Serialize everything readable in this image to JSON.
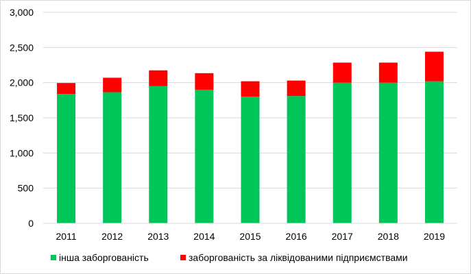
{
  "chart_data": {
    "type": "bar",
    "stacked": true,
    "categories": [
      "2011",
      "2012",
      "2013",
      "2014",
      "2015",
      "2016",
      "2017",
      "2018",
      "2019"
    ],
    "series": [
      {
        "name": "інша заборгованість",
        "color": "#00C65A",
        "values": [
          1840,
          1865,
          1950,
          1900,
          1800,
          1810,
          2000,
          2000,
          2020
        ]
      },
      {
        "name": "заборгованість за ліквідованими підприємствами",
        "color": "#FF0000",
        "values": [
          155,
          205,
          225,
          235,
          220,
          220,
          285,
          285,
          420
        ]
      }
    ],
    "yticks": [
      "0",
      "500",
      "1,000",
      "1,500",
      "2,000",
      "2,500",
      "3,000"
    ],
    "ylim": [
      0,
      3000
    ],
    "grid": true,
    "legend": "bottom"
  }
}
